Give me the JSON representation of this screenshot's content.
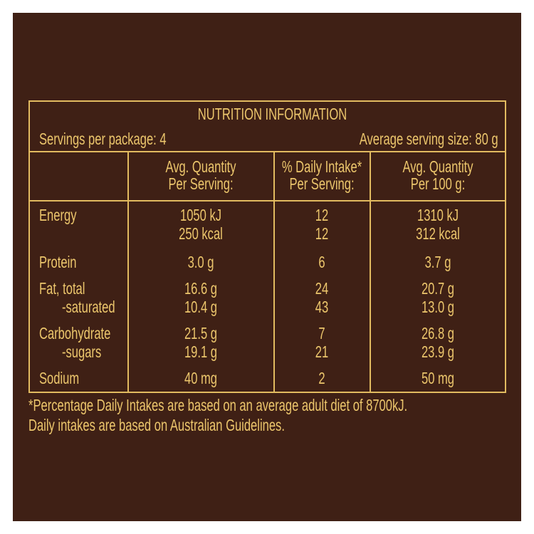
{
  "colors": {
    "background": "#3f2015",
    "text": "#ecc66c",
    "border": "#e2bb60"
  },
  "title": "NUTRITION INFORMATION",
  "servings_per_package": "Servings per package: 4",
  "average_serving_size": "Average serving size: 80 g",
  "headers": [
    {
      "line1": "Avg. Quantity",
      "line2": "Per Serving:"
    },
    {
      "line1": "% Daily Intake*",
      "line2": "Per Serving:"
    },
    {
      "line1": "Avg. Quantity",
      "line2": "Per 100 g:"
    }
  ],
  "rows": [
    {
      "label": "Energy",
      "serving": "1050 kJ",
      "di": "12",
      "per100": "1310 kJ"
    },
    {
      "label": "",
      "serving": "250 kcal",
      "di": "12",
      "per100": "312 kcal"
    },
    {
      "label": "Protein",
      "serving": "3.0 g",
      "di": "6",
      "per100": "3.7 g"
    },
    {
      "label": "Fat, total",
      "serving": "16.6 g",
      "di": "24",
      "per100": "20.7 g"
    },
    {
      "label": "-saturated",
      "serving": "10.4 g",
      "di": "43",
      "per100": "13.0 g"
    },
    {
      "label": "Carbohydrate",
      "serving": "21.5 g",
      "di": "7",
      "per100": "26.8 g"
    },
    {
      "label": "-sugars",
      "serving": "19.1 g",
      "di": "21",
      "per100": "23.9 g"
    },
    {
      "label": "Sodium",
      "serving": "40 mg",
      "di": "2",
      "per100": "50 mg"
    }
  ],
  "footnotes": [
    "*Percentage Daily Intakes are based on an average adult diet of 8700kJ.",
    "Daily intakes are based on Australian Guidelines."
  ]
}
